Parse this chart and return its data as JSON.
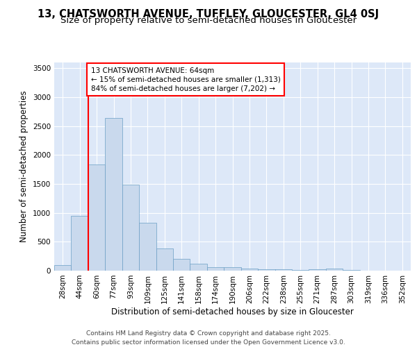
{
  "title_line1": "13, CHATSWORTH AVENUE, TUFFLEY, GLOUCESTER, GL4 0SJ",
  "title_line2": "Size of property relative to semi-detached houses in Gloucester",
  "xlabel": "Distribution of semi-detached houses by size in Gloucester",
  "ylabel": "Number of semi-detached properties",
  "categories": [
    "28sqm",
    "44sqm",
    "60sqm",
    "77sqm",
    "93sqm",
    "109sqm",
    "125sqm",
    "141sqm",
    "158sqm",
    "174sqm",
    "190sqm",
    "206sqm",
    "222sqm",
    "238sqm",
    "255sqm",
    "271sqm",
    "287sqm",
    "303sqm",
    "319sqm",
    "336sqm",
    "352sqm"
  ],
  "values": [
    100,
    950,
    1840,
    2640,
    1490,
    830,
    390,
    200,
    115,
    65,
    55,
    40,
    25,
    30,
    15,
    20,
    35,
    10,
    5,
    5,
    5
  ],
  "bar_color": "#c9d9ed",
  "bar_edge_color": "#6a9ec5",
  "red_line_x": 1.5,
  "annotation_text": "13 CHATSWORTH AVENUE: 64sqm\n← 15% of semi-detached houses are smaller (1,313)\n84% of semi-detached houses are larger (7,202) →",
  "ylim": [
    0,
    3600
  ],
  "yticks": [
    0,
    500,
    1000,
    1500,
    2000,
    2500,
    3000,
    3500
  ],
  "background_color": "#dde8f8",
  "footer_line1": "Contains HM Land Registry data © Crown copyright and database right 2025.",
  "footer_line2": "Contains public sector information licensed under the Open Government Licence v3.0.",
  "title_fontsize": 10.5,
  "subtitle_fontsize": 9.5,
  "tick_fontsize": 7.5,
  "ylabel_fontsize": 8.5,
  "xlabel_fontsize": 8.5,
  "footer_fontsize": 6.5,
  "annotation_fontsize": 7.5
}
